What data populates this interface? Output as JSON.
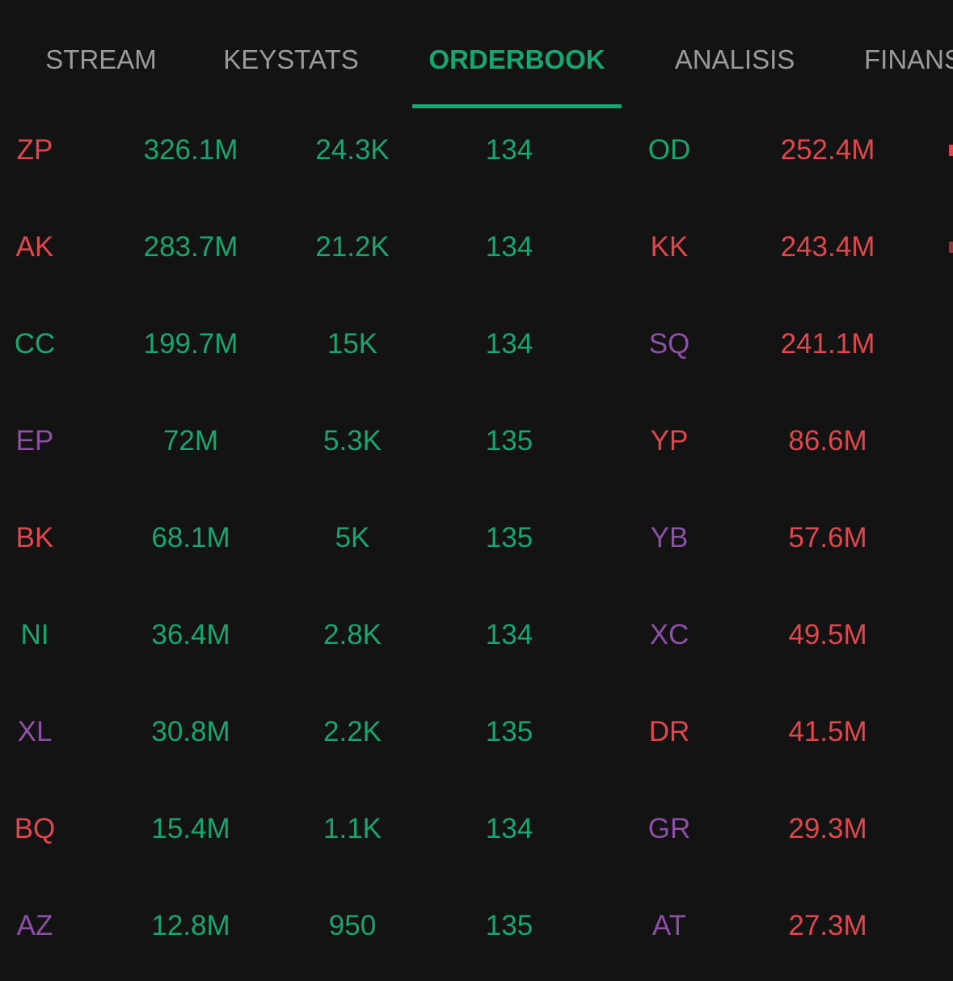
{
  "tabs": [
    {
      "label": "STREAM",
      "active": false
    },
    {
      "label": "KEYSTATS",
      "active": false
    },
    {
      "label": "ORDERBOOK",
      "active": true
    },
    {
      "label": "ANALISIS",
      "active": false
    },
    {
      "label": "FINANS",
      "active": false
    }
  ],
  "colors": {
    "background": "#131313",
    "accent_green": "#18a56f",
    "red": "#e0474c",
    "purple": "#8e4fa6",
    "tab_inactive": "#9a9a9a"
  },
  "broker_rows": [
    {
      "buyer": "ZP",
      "buyer_color": "red",
      "buy_value": "326.1M",
      "buy_lot": "24.3K",
      "buy_avg": "134",
      "seller": "OD",
      "seller_color": "green",
      "sell_value": "252.4M"
    },
    {
      "buyer": "AK",
      "buyer_color": "red",
      "buy_value": "283.7M",
      "buy_lot": "21.2K",
      "buy_avg": "134",
      "seller": "KK",
      "seller_color": "red",
      "sell_value": "243.4M"
    },
    {
      "buyer": "CC",
      "buyer_color": "green",
      "buy_value": "199.7M",
      "buy_lot": "15K",
      "buy_avg": "134",
      "seller": "SQ",
      "seller_color": "purple",
      "sell_value": "241.1M"
    },
    {
      "buyer": "EP",
      "buyer_color": "purple",
      "buy_value": "72M",
      "buy_lot": "5.3K",
      "buy_avg": "135",
      "seller": "YP",
      "seller_color": "red",
      "sell_value": "86.6M"
    },
    {
      "buyer": "BK",
      "buyer_color": "red",
      "buy_value": "68.1M",
      "buy_lot": "5K",
      "buy_avg": "135",
      "seller": "YB",
      "seller_color": "purple",
      "sell_value": "57.6M"
    },
    {
      "buyer": "NI",
      "buyer_color": "green",
      "buy_value": "36.4M",
      "buy_lot": "2.8K",
      "buy_avg": "134",
      "seller": "XC",
      "seller_color": "purple",
      "sell_value": "49.5M"
    },
    {
      "buyer": "XL",
      "buyer_color": "purple",
      "buy_value": "30.8M",
      "buy_lot": "2.2K",
      "buy_avg": "135",
      "seller": "DR",
      "seller_color": "red",
      "sell_value": "41.5M"
    },
    {
      "buyer": "BQ",
      "buyer_color": "red",
      "buy_value": "15.4M",
      "buy_lot": "1.1K",
      "buy_avg": "134",
      "seller": "GR",
      "seller_color": "purple",
      "sell_value": "29.3M"
    },
    {
      "buyer": "AZ",
      "buyer_color": "purple",
      "buy_value": "12.8M",
      "buy_lot": "950",
      "buy_avg": "135",
      "seller": "AT",
      "seller_color": "purple",
      "sell_value": "27.3M"
    }
  ]
}
